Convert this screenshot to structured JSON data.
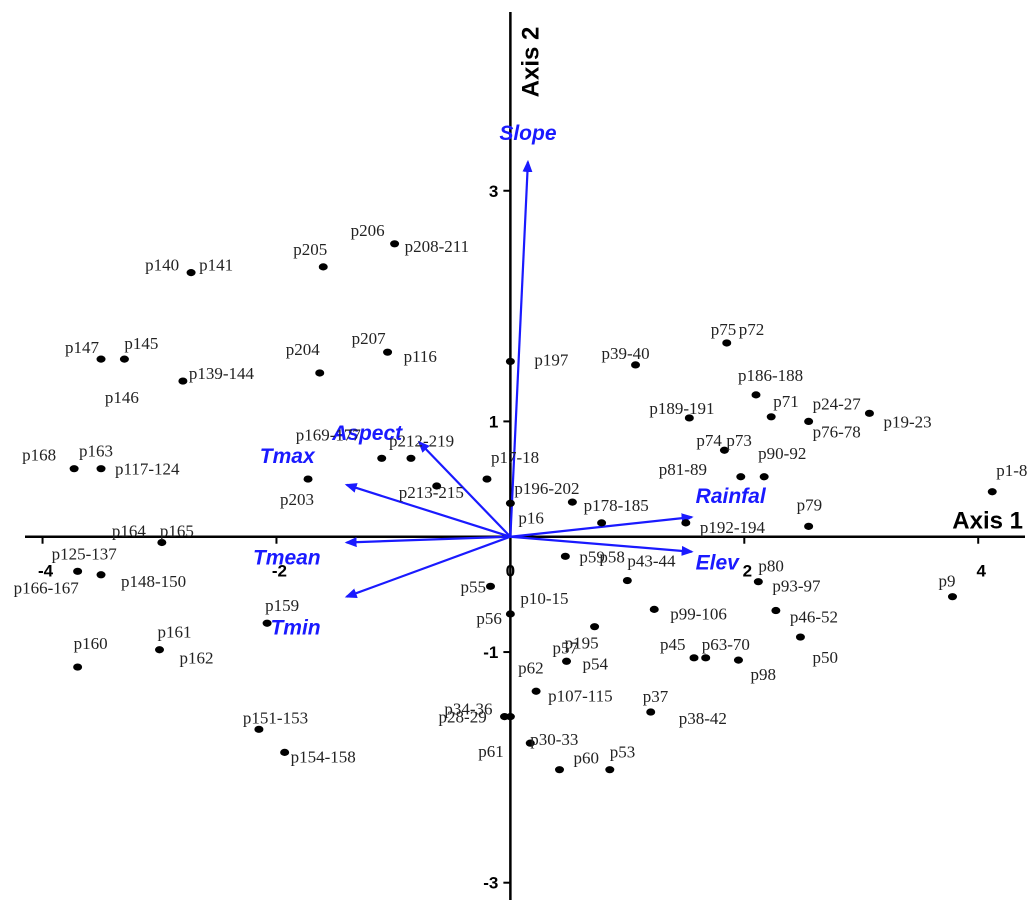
{
  "chart_data": {
    "type": "scatter",
    "title": "",
    "xlabel": "Axis 1",
    "ylabel": "Axis 2",
    "xlim": [
      -4.15,
      4.4
    ],
    "ylim": [
      -3.15,
      4.55
    ],
    "x_ticks": [
      {
        "value": -4,
        "label": "-4"
      },
      {
        "value": -2,
        "label": "-2"
      },
      {
        "value": 0,
        "label": "0"
      },
      {
        "value": 2,
        "label": "2"
      },
      {
        "value": 4,
        "label": "4"
      }
    ],
    "y_ticks": [
      {
        "value": 3,
        "label": "3"
      },
      {
        "value": 1,
        "label": "1"
      },
      {
        "value": -1,
        "label": "-1"
      },
      {
        "value": -3,
        "label": "-3"
      }
    ],
    "colors": {
      "points": "#000000",
      "vectors": "#1a1aff",
      "axes": "#000000"
    },
    "vectors": [
      {
        "name": "Slope",
        "x": 0.15,
        "y": 3.25
      },
      {
        "name": "Aspect",
        "x": -0.78,
        "y": 0.82
      },
      {
        "name": "Tmax",
        "x": -1.4,
        "y": 0.45
      },
      {
        "name": "Tmean",
        "x": -1.4,
        "y": -0.05
      },
      {
        "name": "Tmin",
        "x": -1.4,
        "y": -0.52
      },
      {
        "name": "Rainfal",
        "x": 1.55,
        "y": 0.17
      },
      {
        "name": "Elev",
        "x": 1.55,
        "y": -0.13
      }
    ],
    "points": [
      {
        "label": "p206",
        "x": -0.99,
        "y": 2.54
      },
      {
        "label": "p208-211",
        "x": -0.99,
        "y": 2.54
      },
      {
        "label": "p205",
        "x": -1.6,
        "y": 2.34
      },
      {
        "label": "p140",
        "x": -2.73,
        "y": 2.29
      },
      {
        "label": "p141",
        "x": -2.73,
        "y": 2.29
      },
      {
        "label": "p207",
        "x": -1.05,
        "y": 1.6
      },
      {
        "label": "p116",
        "x": -1.05,
        "y": 1.6
      },
      {
        "label": "p147",
        "x": -3.5,
        "y": 1.54
      },
      {
        "label": "p145",
        "x": -3.3,
        "y": 1.54
      },
      {
        "label": "p146",
        "x": -2.8,
        "y": 1.35
      },
      {
        "label": "p139-144",
        "x": -2.8,
        "y": 1.35
      },
      {
        "label": "p204",
        "x": -1.63,
        "y": 1.42
      },
      {
        "label": "p197",
        "x": 0.0,
        "y": 1.52
      },
      {
        "label": "p39-40",
        "x": 1.07,
        "y": 1.49
      },
      {
        "label": "p75",
        "x": 1.85,
        "y": 1.68
      },
      {
        "label": "p72",
        "x": 1.85,
        "y": 1.68
      },
      {
        "label": "p186-188",
        "x": 2.1,
        "y": 1.23
      },
      {
        "label": "p189-191",
        "x": 1.53,
        "y": 1.03
      },
      {
        "label": "p71",
        "x": 2.23,
        "y": 1.04
      },
      {
        "label": "p24-27",
        "x": 2.55,
        "y": 1.0
      },
      {
        "label": "p19-23",
        "x": 3.07,
        "y": 1.07
      },
      {
        "label": "p76-78",
        "x": 2.55,
        "y": 1.0
      },
      {
        "label": "p74",
        "x": 1.83,
        "y": 0.75
      },
      {
        "label": "p73",
        "x": 1.83,
        "y": 0.75
      },
      {
        "label": "p81-89",
        "x": 1.97,
        "y": 0.52
      },
      {
        "label": "p90-92",
        "x": 2.17,
        "y": 0.52
      },
      {
        "label": "p168",
        "x": -3.73,
        "y": 0.59
      },
      {
        "label": "p163",
        "x": -3.5,
        "y": 0.59
      },
      {
        "label": "p117-124",
        "x": -3.5,
        "y": 0.59
      },
      {
        "label": "p169-177",
        "x": -1.1,
        "y": 0.68
      },
      {
        "label": "p212-219",
        "x": -0.85,
        "y": 0.68
      },
      {
        "label": "p17-18",
        "x": -0.2,
        "y": 0.5
      },
      {
        "label": "p203",
        "x": -1.73,
        "y": 0.5
      },
      {
        "label": "p213-215",
        "x": -0.63,
        "y": 0.44
      },
      {
        "label": "p196-202",
        "x": 0.53,
        "y": 0.3
      },
      {
        "label": "p178-185",
        "x": 0.78,
        "y": 0.12
      },
      {
        "label": "p16",
        "x": 0.0,
        "y": 0.29
      },
      {
        "label": "p1-8",
        "x": 4.12,
        "y": 0.39
      },
      {
        "label": "p79",
        "x": 2.55,
        "y": 0.09
      },
      {
        "label": "p192-194",
        "x": 1.5,
        "y": 0.12
      },
      {
        "label": "p164",
        "x": -2.98,
        "y": -0.05
      },
      {
        "label": "p165",
        "x": -2.98,
        "y": -0.05
      },
      {
        "label": "p125-137",
        "x": -3.7,
        "y": -0.3
      },
      {
        "label": "p166-167",
        "x": -3.7,
        "y": -0.3
      },
      {
        "label": "p148-150",
        "x": -3.5,
        "y": -0.33
      },
      {
        "label": "p59",
        "x": 0.47,
        "y": -0.17
      },
      {
        "label": "p58",
        "x": 0.47,
        "y": -0.17
      },
      {
        "label": "p43-44",
        "x": 1.0,
        "y": -0.38
      },
      {
        "label": "p80",
        "x": 2.12,
        "y": -0.39
      },
      {
        "label": "p93-97",
        "x": 2.12,
        "y": -0.39
      },
      {
        "label": "p9",
        "x": 3.78,
        "y": -0.52
      },
      {
        "label": "p55",
        "x": -0.17,
        "y": -0.43
      },
      {
        "label": "p10-15",
        "x": 0.0,
        "y": -0.67
      },
      {
        "label": "p56",
        "x": 0.0,
        "y": -0.67
      },
      {
        "label": "p195",
        "x": 0.72,
        "y": -0.78
      },
      {
        "label": "p99-106",
        "x": 1.23,
        "y": -0.63
      },
      {
        "label": "p46-52",
        "x": 2.27,
        "y": -0.64
      },
      {
        "label": "p50",
        "x": 2.48,
        "y": -0.87
      },
      {
        "label": "p159",
        "x": -2.08,
        "y": -0.75
      },
      {
        "label": "p161",
        "x": -3.0,
        "y": -0.98
      },
      {
        "label": "p162",
        "x": -3.0,
        "y": -0.98
      },
      {
        "label": "p160",
        "x": -3.7,
        "y": -1.13
      },
      {
        "label": "p45",
        "x": 1.57,
        "y": -1.05
      },
      {
        "label": "p63-70",
        "x": 1.67,
        "y": -1.05
      },
      {
        "label": "p98",
        "x": 1.95,
        "y": -1.07
      },
      {
        "label": "p57",
        "x": 0.48,
        "y": -1.08
      },
      {
        "label": "p54",
        "x": 0.48,
        "y": -1.08
      },
      {
        "label": "p62",
        "x": 0.22,
        "y": -1.34
      },
      {
        "label": "p107-115",
        "x": 0.22,
        "y": -1.34
      },
      {
        "label": "p34-36",
        "x": 0.0,
        "y": -1.56
      },
      {
        "label": "p37",
        "x": 1.2,
        "y": -1.52
      },
      {
        "label": "p38-42",
        "x": 1.2,
        "y": -1.52
      },
      {
        "label": "p28-29",
        "x": -0.05,
        "y": -1.56
      },
      {
        "label": "p61",
        "x": 0.17,
        "y": -1.79
      },
      {
        "label": "p30-33",
        "x": 0.17,
        "y": -1.79
      },
      {
        "label": "p60",
        "x": 0.42,
        "y": -2.02
      },
      {
        "label": "p53",
        "x": 0.85,
        "y": -2.02
      },
      {
        "label": "p151-153",
        "x": -2.15,
        "y": -1.67
      },
      {
        "label": "p154-158",
        "x": -1.93,
        "y": -1.87
      }
    ]
  }
}
